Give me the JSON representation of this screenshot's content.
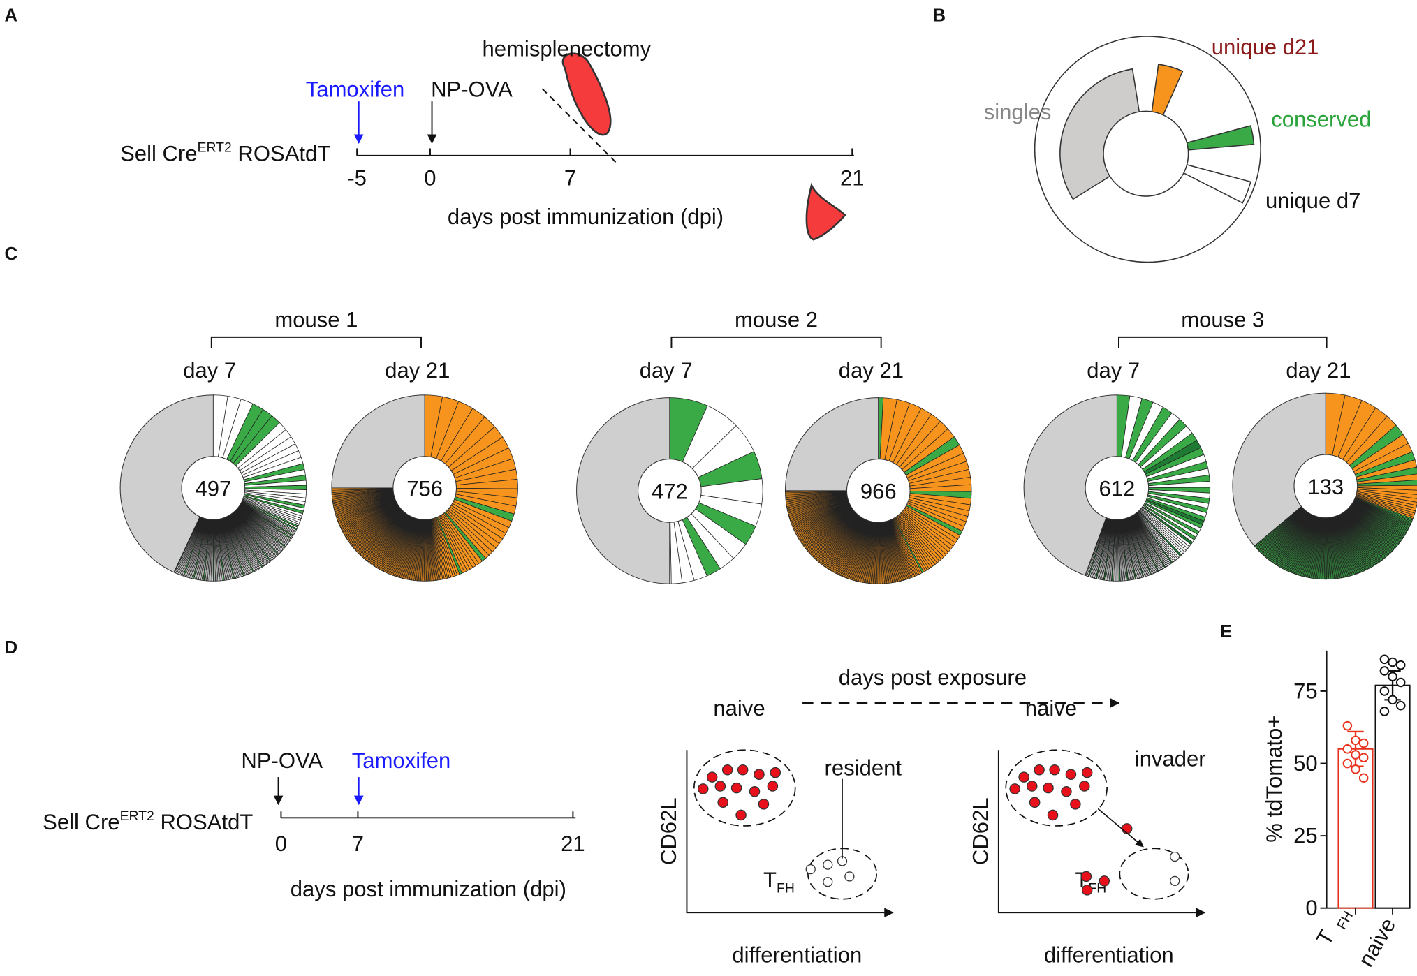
{
  "panel_labels": [
    "A",
    "B",
    "C",
    "D",
    "E"
  ],
  "panel_a": {
    "cre_line": {
      "main": "Sell Cre",
      "sup": "ERT2",
      "rest": " ROSAtdT"
    },
    "tamoxifen": "Tamoxifen",
    "np_ova": "NP-OVA",
    "surgery": "hemisplenectomy",
    "ticks": [
      -5,
      0,
      7,
      21
    ],
    "axis_label": "days post immunization (dpi)"
  },
  "panel_b": {
    "unique_d21": "unique d21",
    "conserved": "conserved",
    "singles": "singles",
    "unique_d7": "unique d7"
  },
  "panel_c": {
    "mice": [
      {
        "name": "mouse 1",
        "days": [
          {
            "label": "day 7",
            "count": 497
          },
          {
            "label": "day 21",
            "count": 756
          }
        ]
      },
      {
        "name": "mouse 2",
        "days": [
          {
            "label": "day 7",
            "count": 472
          },
          {
            "label": "day 21",
            "count": 966
          }
        ]
      },
      {
        "name": "mouse 3",
        "days": [
          {
            "label": "day 7",
            "count": 612
          },
          {
            "label": "day 21",
            "count": 133
          }
        ]
      }
    ]
  },
  "panel_d": {
    "cre_line": {
      "main": "Sell Cre",
      "sup": "ERT2",
      "rest": " ROSAtdT"
    },
    "np_ova": "NP-OVA",
    "tamoxifen": "Tamoxifen",
    "ticks": [
      0,
      7,
      21
    ],
    "axis_label": "days post immunization (dpi)",
    "exposure_label": "days post exposure",
    "plots": [
      {
        "naive": "naive",
        "label": "resident",
        "y_axis": "CD62L",
        "tfh_main": "T",
        "tfh_sub": "FH",
        "x_axis": "differentiation"
      },
      {
        "naive": "naive",
        "label": "invader",
        "y_axis": "CD62L",
        "tfh_main": "T",
        "tfh_sub": "FH",
        "x_axis": "differentiation"
      }
    ]
  },
  "panel_e": {
    "type": "bar",
    "ylabel": "% tdTomato+",
    "categories": [
      "T",
      "naive"
    ],
    "first_category_subscript": "FH",
    "values": [
      55,
      77
    ],
    "errors": [
      6,
      5
    ],
    "colors": [
      "#e8321e",
      "#111111"
    ],
    "points": [
      [
        63,
        58,
        57,
        55,
        53,
        52,
        50,
        48,
        45
      ],
      [
        86,
        85,
        84,
        82,
        80,
        78,
        75,
        72,
        70,
        68
      ]
    ],
    "ylim": [
      0,
      89
    ],
    "yticks": [
      0,
      25,
      50,
      75
    ]
  }
}
